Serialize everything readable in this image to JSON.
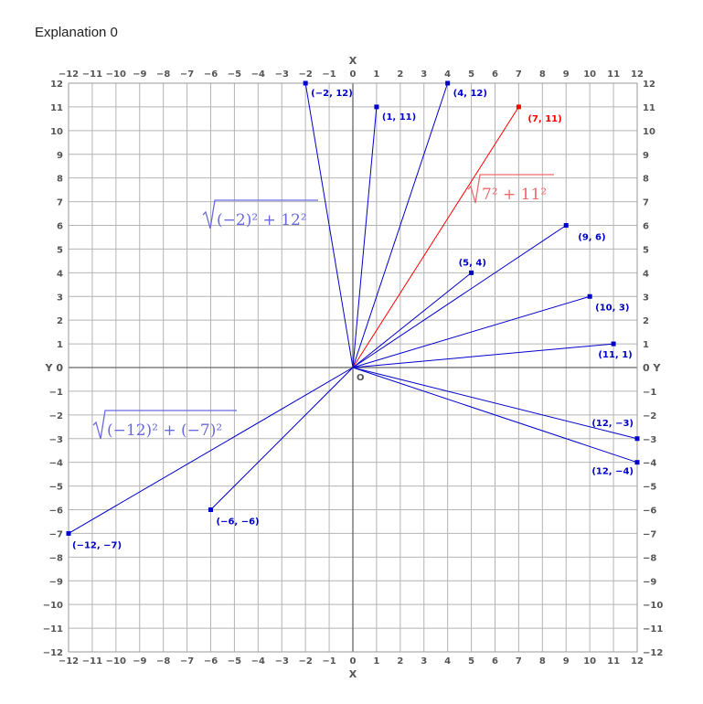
{
  "title": "Explanation 0",
  "chart_data": {
    "type": "scatter",
    "xlim": [
      -12,
      12
    ],
    "ylim": [
      -12,
      12
    ],
    "grid": true,
    "xlabel": "X",
    "ylabel": "Y",
    "origin_label": "O",
    "x_ticks": [
      -12,
      -11,
      -10,
      -9,
      -8,
      -7,
      -6,
      -5,
      -4,
      -3,
      -2,
      -1,
      0,
      1,
      2,
      3,
      4,
      5,
      6,
      7,
      8,
      9,
      10,
      11,
      12
    ],
    "y_ticks": [
      -12,
      -11,
      -10,
      -9,
      -8,
      -7,
      -6,
      -5,
      -4,
      -3,
      -2,
      -1,
      0,
      1,
      2,
      3,
      4,
      5,
      6,
      7,
      8,
      9,
      10,
      11,
      12
    ],
    "points": [
      {
        "x": -2,
        "y": 12,
        "label": "(−2, 12)",
        "color": "#0000cc"
      },
      {
        "x": 1,
        "y": 11,
        "label": "(1, 11)",
        "color": "#0000cc"
      },
      {
        "x": 4,
        "y": 12,
        "label": "(4, 12)",
        "color": "#0000cc"
      },
      {
        "x": 7,
        "y": 11,
        "label": "(7, 11)",
        "color": "#ff0000"
      },
      {
        "x": 9,
        "y": 6,
        "label": "(9, 6)",
        "color": "#0000cc"
      },
      {
        "x": 5,
        "y": 4,
        "label": "(5, 4)",
        "color": "#0000cc"
      },
      {
        "x": 10,
        "y": 3,
        "label": "(10, 3)",
        "color": "#0000cc"
      },
      {
        "x": 11,
        "y": 1,
        "label": "(11, 1)",
        "color": "#0000cc"
      },
      {
        "x": 12,
        "y": -3,
        "label": "(12, −3)",
        "color": "#0000cc"
      },
      {
        "x": 12,
        "y": -4,
        "label": "(12, −4)",
        "color": "#0000cc"
      },
      {
        "x": -6,
        "y": -6,
        "label": "(−6, −6)",
        "color": "#0000cc"
      },
      {
        "x": -12,
        "y": -7,
        "label": "(−12, −7)",
        "color": "#0000cc"
      }
    ],
    "annotations": [
      {
        "text": "(−2)² + 12²",
        "color": "#6a6ae0"
      },
      {
        "text": "7² + 11²",
        "color": "#ee6a6a"
      },
      {
        "text": "(−12)² + (−7)²",
        "color": "#6a6ae0"
      }
    ]
  }
}
